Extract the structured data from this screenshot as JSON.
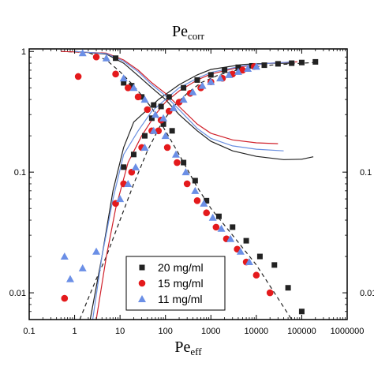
{
  "chart_data": {
    "type": "scatter",
    "title": "",
    "top_axis_label": "Pe",
    "top_axis_label_sub": "corr",
    "xlabel": "Pe",
    "xlabel_sub": "eff",
    "ylabel": "",
    "x_scale": "log",
    "y_scale": "log",
    "xlim": [
      0.1,
      1000000
    ],
    "ylim": [
      0.006,
      1.05
    ],
    "x_ticks": [
      {
        "value": 0.1,
        "label": "0.1"
      },
      {
        "value": 1,
        "label": "1"
      },
      {
        "value": 10,
        "label": "10"
      },
      {
        "value": 100,
        "label": "100"
      },
      {
        "value": 1000,
        "label": "1000"
      },
      {
        "value": 10000,
        "label": "10000"
      },
      {
        "value": 100000,
        "label": "100000"
      },
      {
        "value": 1000000,
        "label": "1000000"
      }
    ],
    "y_ticks": [
      {
        "value": 0.01,
        "label": "0.01"
      },
      {
        "value": 0.1,
        "label": "0.1"
      },
      {
        "value": 1,
        "label": "1"
      }
    ],
    "right_y_ticks": [
      {
        "value": 0.01,
        "label": "0.01"
      },
      {
        "value": 0.1,
        "label": "0.1"
      }
    ],
    "legend_position": "bottom-left",
    "series": [
      {
        "name": "20 mg/ml",
        "marker": "square",
        "color": "#222222",
        "falling": [
          [
            8,
            0.88
          ],
          [
            12,
            0.55
          ],
          [
            18,
            0.52
          ],
          [
            30,
            0.42
          ],
          [
            55,
            0.36
          ],
          [
            90,
            0.25
          ],
          [
            140,
            0.22
          ],
          [
            250,
            0.12
          ],
          [
            450,
            0.085
          ],
          [
            800,
            0.058
          ],
          [
            1500,
            0.043
          ],
          [
            3000,
            0.035
          ],
          [
            6000,
            0.027
          ],
          [
            12000,
            0.02
          ],
          [
            25000,
            0.017
          ],
          [
            50000,
            0.011
          ],
          [
            100000,
            0.007
          ]
        ],
        "rising": [
          [
            12,
            0.11
          ],
          [
            20,
            0.14
          ],
          [
            35,
            0.2
          ],
          [
            50,
            0.28
          ],
          [
            80,
            0.35
          ],
          [
            120,
            0.42
          ],
          [
            250,
            0.5
          ],
          [
            500,
            0.58
          ],
          [
            1000,
            0.64
          ],
          [
            2000,
            0.7
          ],
          [
            4000,
            0.74
          ],
          [
            8000,
            0.76
          ],
          [
            15000,
            0.77
          ],
          [
            30000,
            0.79
          ],
          [
            60000,
            0.8
          ],
          [
            100000,
            0.81
          ],
          [
            200000,
            0.82
          ]
        ]
      },
      {
        "name": "15 mg/ml",
        "marker": "circle",
        "color": "#e41a1c",
        "falling": [
          [
            3,
            0.9
          ],
          [
            8,
            0.65
          ],
          [
            15,
            0.5
          ],
          [
            25,
            0.42
          ],
          [
            40,
            0.33
          ],
          [
            70,
            0.22
          ],
          [
            110,
            0.16
          ],
          [
            180,
            0.12
          ],
          [
            300,
            0.08
          ],
          [
            500,
            0.058
          ],
          [
            800,
            0.046
          ],
          [
            1300,
            0.035
          ],
          [
            2200,
            0.028
          ],
          [
            3800,
            0.023
          ],
          [
            6000,
            0.018
          ],
          [
            10000,
            0.014
          ],
          [
            20000,
            0.01
          ]
        ],
        "rising": [
          [
            0.6,
            0.009
          ],
          [
            1.2,
            0.62
          ],
          [
            1.5,
            0.005
          ],
          [
            8,
            0.055
          ],
          [
            12,
            0.08
          ],
          [
            18,
            0.1
          ],
          [
            30,
            0.16
          ],
          [
            50,
            0.22
          ],
          [
            80,
            0.27
          ],
          [
            120,
            0.32
          ],
          [
            200,
            0.38
          ],
          [
            350,
            0.45
          ],
          [
            600,
            0.5
          ],
          [
            1000,
            0.56
          ],
          [
            1800,
            0.6
          ],
          [
            3000,
            0.65
          ],
          [
            5000,
            0.7
          ],
          [
            9000,
            0.75
          ]
        ]
      },
      {
        "name": "11 mg/ml",
        "marker": "triangle",
        "color": "#6b8fe6",
        "falling": [
          [
            1.5,
            0.97
          ],
          [
            5,
            0.88
          ],
          [
            12,
            0.6
          ],
          [
            20,
            0.5
          ],
          [
            35,
            0.4
          ],
          [
            60,
            0.3
          ],
          [
            100,
            0.2
          ],
          [
            170,
            0.14
          ],
          [
            280,
            0.1
          ],
          [
            450,
            0.07
          ],
          [
            700,
            0.055
          ],
          [
            1100,
            0.042
          ],
          [
            1700,
            0.034
          ],
          [
            2700,
            0.028
          ],
          [
            4500,
            0.022
          ],
          [
            7000,
            0.018
          ]
        ],
        "rising": [
          [
            0.6,
            0.02
          ],
          [
            0.8,
            0.013
          ],
          [
            1.5,
            0.016
          ],
          [
            3,
            0.022
          ],
          [
            10,
            0.06
          ],
          [
            15,
            0.08
          ],
          [
            22,
            0.11
          ],
          [
            35,
            0.16
          ],
          [
            55,
            0.22
          ],
          [
            90,
            0.28
          ],
          [
            150,
            0.34
          ],
          [
            250,
            0.4
          ],
          [
            400,
            0.46
          ],
          [
            650,
            0.52
          ],
          [
            1000,
            0.56
          ],
          [
            1600,
            0.6
          ],
          [
            2500,
            0.64
          ],
          [
            4000,
            0.68
          ],
          [
            6500,
            0.72
          ],
          [
            10000,
            0.75
          ]
        ]
      }
    ],
    "lines": [
      {
        "style": "dashed",
        "color": "#222222",
        "points": [
          [
            0.5,
            1.0
          ],
          [
            2,
            0.98
          ],
          [
            5,
            0.85
          ],
          [
            10,
            0.68
          ],
          [
            20,
            0.52
          ],
          [
            50,
            0.34
          ],
          [
            100,
            0.22
          ],
          [
            200,
            0.14
          ],
          [
            500,
            0.075
          ],
          [
            1000,
            0.05
          ],
          [
            3000,
            0.03
          ],
          [
            10000,
            0.017
          ],
          [
            30000,
            0.009
          ],
          [
            60000,
            0.006
          ]
        ]
      },
      {
        "style": "dashed",
        "color": "#222222",
        "points": [
          [
            1.3,
            0.006
          ],
          [
            2,
            0.009
          ],
          [
            3,
            0.013
          ],
          [
            5,
            0.02
          ],
          [
            10,
            0.04
          ],
          [
            20,
            0.08
          ],
          [
            40,
            0.15
          ],
          [
            80,
            0.25
          ],
          [
            150,
            0.35
          ],
          [
            300,
            0.45
          ],
          [
            600,
            0.55
          ],
          [
            1500,
            0.64
          ],
          [
            5000,
            0.72
          ],
          [
            20000,
            0.77
          ],
          [
            100000,
            0.8
          ],
          [
            200000,
            0.81
          ]
        ]
      },
      {
        "style": "solid",
        "color": "#222222",
        "points": [
          [
            2.2,
            0.006
          ],
          [
            4,
            0.02
          ],
          [
            7,
            0.07
          ],
          [
            12,
            0.16
          ],
          [
            20,
            0.26
          ],
          [
            40,
            0.33
          ],
          [
            70,
            0.4
          ],
          [
            100,
            0.44
          ],
          [
            200,
            0.53
          ],
          [
            500,
            0.64
          ],
          [
            1000,
            0.71
          ],
          [
            5000,
            0.78
          ],
          [
            20000,
            0.8
          ],
          [
            70000,
            0.8
          ]
        ]
      },
      {
        "style": "solid",
        "color": "#222222",
        "points": [
          [
            1,
            1.0
          ],
          [
            5,
            0.95
          ],
          [
            12,
            0.8
          ],
          [
            25,
            0.63
          ],
          [
            50,
            0.5
          ],
          [
            100,
            0.4
          ],
          [
            200,
            0.3
          ],
          [
            500,
            0.22
          ],
          [
            1000,
            0.18
          ],
          [
            3000,
            0.15
          ],
          [
            10000,
            0.135
          ],
          [
            40000,
            0.127
          ],
          [
            100000,
            0.128
          ],
          [
            180000,
            0.134
          ]
        ]
      },
      {
        "style": "solid",
        "color": "#d0202a",
        "points": [
          [
            3,
            0.006
          ],
          [
            5,
            0.02
          ],
          [
            8,
            0.05
          ],
          [
            15,
            0.12
          ],
          [
            30,
            0.2
          ],
          [
            60,
            0.3
          ],
          [
            100,
            0.38
          ],
          [
            200,
            0.47
          ],
          [
            500,
            0.58
          ],
          [
            1000,
            0.65
          ],
          [
            5000,
            0.75
          ],
          [
            20000,
            0.8
          ],
          [
            80000,
            0.82
          ]
        ]
      },
      {
        "style": "solid",
        "color": "#d0202a",
        "points": [
          [
            0.5,
            1.0
          ],
          [
            5,
            0.97
          ],
          [
            12,
            0.85
          ],
          [
            25,
            0.7
          ],
          [
            50,
            0.55
          ],
          [
            100,
            0.45
          ],
          [
            200,
            0.35
          ],
          [
            500,
            0.25
          ],
          [
            1000,
            0.21
          ],
          [
            3000,
            0.185
          ],
          [
            10000,
            0.175
          ],
          [
            30000,
            0.172
          ]
        ]
      },
      {
        "style": "solid",
        "color": "#6a8fe0",
        "points": [
          [
            2.5,
            0.006
          ],
          [
            4,
            0.02
          ],
          [
            7,
            0.06
          ],
          [
            12,
            0.14
          ],
          [
            25,
            0.22
          ],
          [
            50,
            0.32
          ],
          [
            100,
            0.4
          ],
          [
            200,
            0.5
          ],
          [
            500,
            0.6
          ],
          [
            1000,
            0.67
          ],
          [
            5000,
            0.76
          ],
          [
            20000,
            0.8
          ],
          [
            70000,
            0.82
          ]
        ]
      },
      {
        "style": "solid",
        "color": "#6a8fe0",
        "points": [
          [
            1,
            1.0
          ],
          [
            5,
            0.96
          ],
          [
            12,
            0.83
          ],
          [
            25,
            0.68
          ],
          [
            50,
            0.53
          ],
          [
            100,
            0.43
          ],
          [
            200,
            0.33
          ],
          [
            500,
            0.23
          ],
          [
            1000,
            0.19
          ],
          [
            3000,
            0.165
          ],
          [
            10000,
            0.155
          ],
          [
            40000,
            0.15
          ]
        ]
      }
    ]
  }
}
